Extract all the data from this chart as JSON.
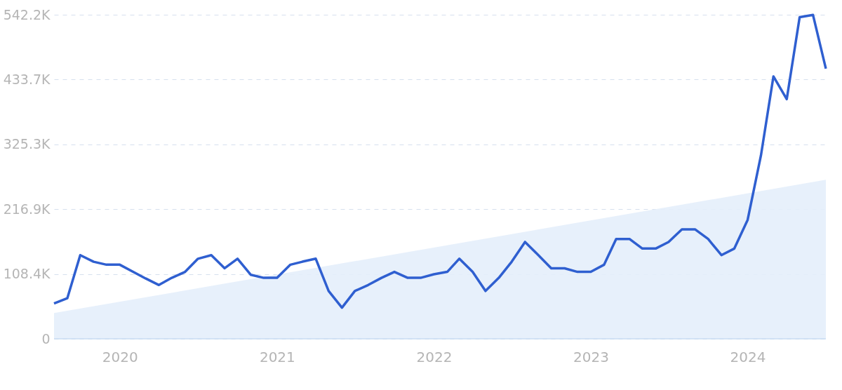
{
  "chart_data": {
    "type": "line",
    "x": [
      "2019-08",
      "2019-09",
      "2019-10",
      "2019-11",
      "2019-12",
      "2020-01",
      "2020-02",
      "2020-03",
      "2020-04",
      "2020-05",
      "2020-06",
      "2020-07",
      "2020-08",
      "2020-09",
      "2020-10",
      "2020-11",
      "2020-12",
      "2021-01",
      "2021-02",
      "2021-03",
      "2021-04",
      "2021-05",
      "2021-06",
      "2021-07",
      "2021-08",
      "2021-09",
      "2021-10",
      "2021-11",
      "2021-12",
      "2022-01",
      "2022-02",
      "2022-03",
      "2022-04",
      "2022-05",
      "2022-06",
      "2022-07",
      "2022-08",
      "2022-09",
      "2022-10",
      "2022-11",
      "2022-12",
      "2023-01",
      "2023-02",
      "2023-03",
      "2023-04",
      "2023-05",
      "2023-06",
      "2023-07",
      "2023-08",
      "2023-09",
      "2023-10",
      "2023-11",
      "2023-12",
      "2024-01",
      "2024-02",
      "2024-03",
      "2024-04",
      "2024-05",
      "2024-06",
      "2024-07"
    ],
    "series": [
      {
        "type": "area",
        "color": "#e4eefb",
        "x": [
          "2019-08",
          "2024-07"
        ],
        "values": [
          43000,
          266000
        ]
      },
      {
        "color": "#2f5fd0",
        "values": [
          59000,
          68000,
          140000,
          129000,
          124000,
          124000,
          112000,
          101000,
          90000,
          102000,
          112000,
          134000,
          140000,
          118000,
          134000,
          107000,
          102000,
          102000,
          124000,
          129000,
          134000,
          80000,
          52000,
          80000,
          90000,
          102000,
          112000,
          102000,
          102000,
          108000,
          112000,
          134000,
          112000,
          80000,
          102000,
          129000,
          162000,
          140000,
          118000,
          118000,
          112000,
          112000,
          124000,
          167000,
          167000,
          151000,
          151000,
          162000,
          183000,
          183000,
          167000,
          140000,
          151000,
          199000,
          307000,
          439000,
          401000,
          538000,
          542000,
          452000
        ]
      }
    ],
    "xlim": [
      "2019-08",
      "2024-07"
    ],
    "xticks": [
      {
        "value": "2020",
        "label": "2020"
      },
      {
        "value": "2021",
        "label": "2021"
      },
      {
        "value": "2022",
        "label": "2022"
      },
      {
        "value": "2023",
        "label": "2023"
      },
      {
        "value": "2024",
        "label": "2024"
      }
    ],
    "ylim": [
      0,
      542200
    ],
    "yticks": [
      {
        "value": 0,
        "label": "0"
      },
      {
        "value": 108400,
        "label": "108.4K"
      },
      {
        "value": 216900,
        "label": "216.9K"
      },
      {
        "value": 325300,
        "label": "325.3K"
      },
      {
        "value": 433700,
        "label": "433.7K"
      },
      {
        "value": 542200,
        "label": "542.2K"
      }
    ],
    "grid": "y",
    "line_style": "solid",
    "marker": "none"
  }
}
